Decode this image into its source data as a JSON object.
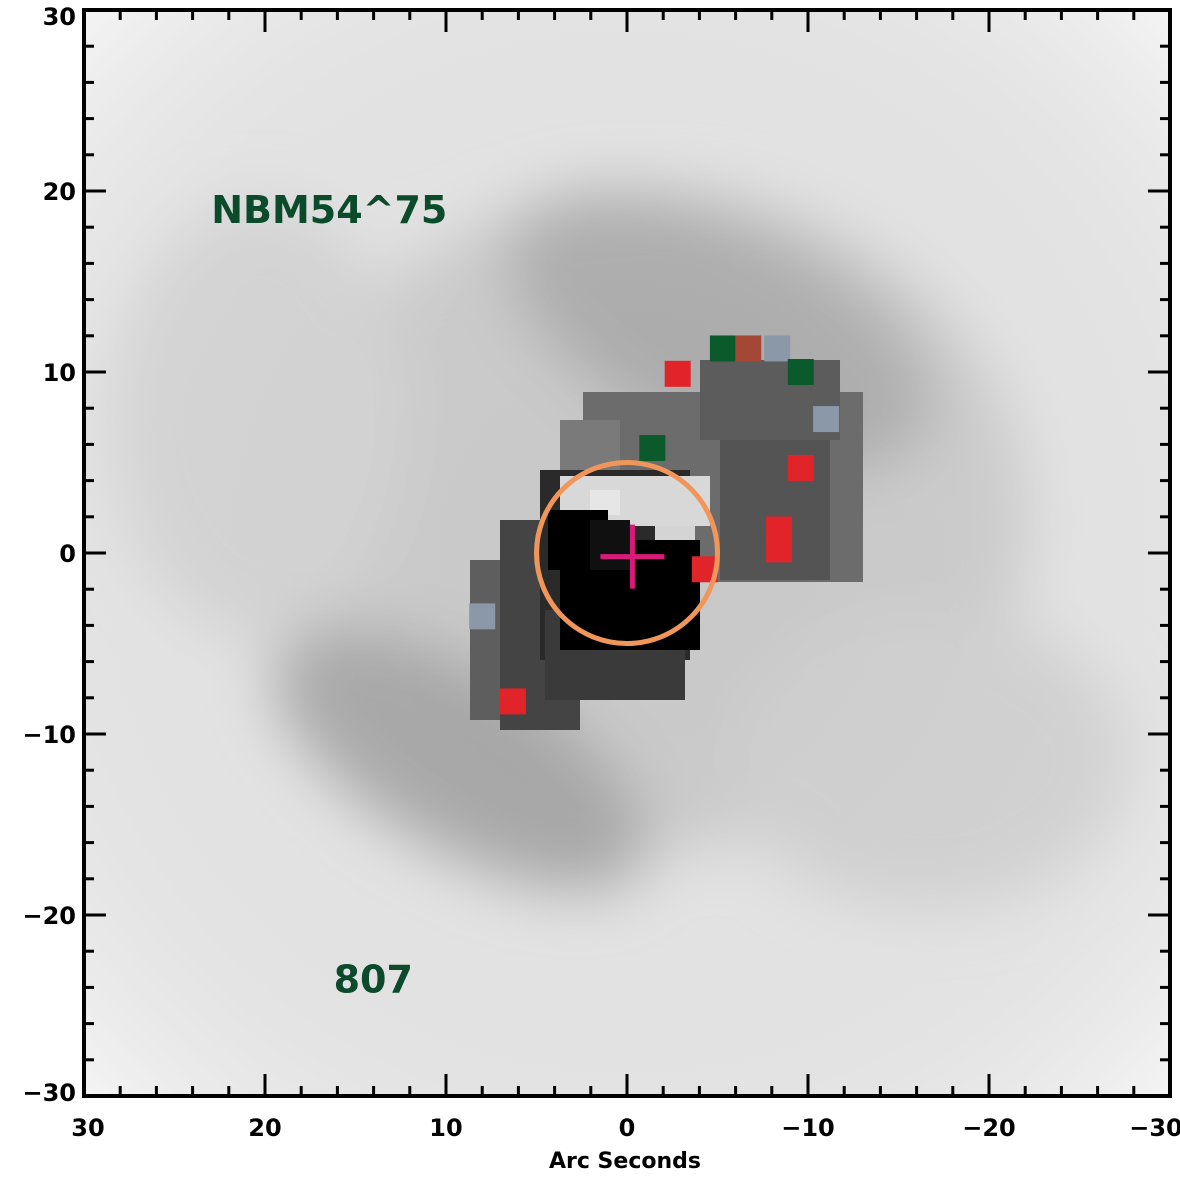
{
  "chart_data": {
    "type": "heatmap",
    "title": "",
    "xlabel": "Arc Seconds",
    "ylabel": "",
    "xlim": [
      30,
      -30
    ],
    "ylim": [
      -30,
      30
    ],
    "x_ticks": [
      30,
      20,
      10,
      0,
      -10,
      -20,
      -30
    ],
    "y_ticks": [
      30,
      20,
      10,
      0,
      -10,
      -20,
      -30
    ],
    "x_tick_labels": [
      "30",
      "20",
      "10",
      "0",
      "−10",
      "−20",
      "−30"
    ],
    "y_tick_labels": [
      "30",
      "20",
      "10",
      "0",
      "−10",
      "−20",
      "−30"
    ],
    "colormap": "grayscale (white = low, black = high)",
    "grid": false,
    "annotations": [
      {
        "text": "NBM54^75",
        "x": 18,
        "y": 19,
        "color": "#0b4a2a"
      },
      {
        "text": "807",
        "x": 14,
        "y": -23.5,
        "color": "#0b4a2a"
      }
    ],
    "aperture_circle": {
      "center": [
        0,
        0
      ],
      "radius_arcsec": 5,
      "color": "#f0965a"
    },
    "center_marker": {
      "x": -0.3,
      "y": -0.2,
      "symbol": "plus",
      "color": "#d81b78"
    },
    "colored_pixels": [
      {
        "x": -5.3,
        "y": 11.3,
        "color": "#0b5a2c"
      },
      {
        "x": -6.7,
        "y": 11.3,
        "color": "#a54735"
      },
      {
        "x": -8.3,
        "y": 11.3,
        "color": "#8a98a8"
      },
      {
        "x": -2.8,
        "y": 9.9,
        "color": "#e0242a"
      },
      {
        "x": -9.6,
        "y": 10.0,
        "color": "#0b5a2c"
      },
      {
        "x": -11.0,
        "y": 7.4,
        "color": "#8a98a8"
      },
      {
        "x": -1.4,
        "y": 5.8,
        "color": "#0b5a2c"
      },
      {
        "x": -9.6,
        "y": 4.7,
        "color": "#e0242a"
      },
      {
        "x": -8.4,
        "y": 1.3,
        "color": "#e0242a"
      },
      {
        "x": -8.4,
        "y": 0.2,
        "color": "#e0242a"
      },
      {
        "x": -4.3,
        "y": -0.9,
        "color": "#e0242a"
      },
      {
        "x": 8.0,
        "y": -3.5,
        "color": "#8a98a8"
      },
      {
        "x": 6.3,
        "y": -8.2,
        "color": "#e0242a"
      }
    ]
  }
}
